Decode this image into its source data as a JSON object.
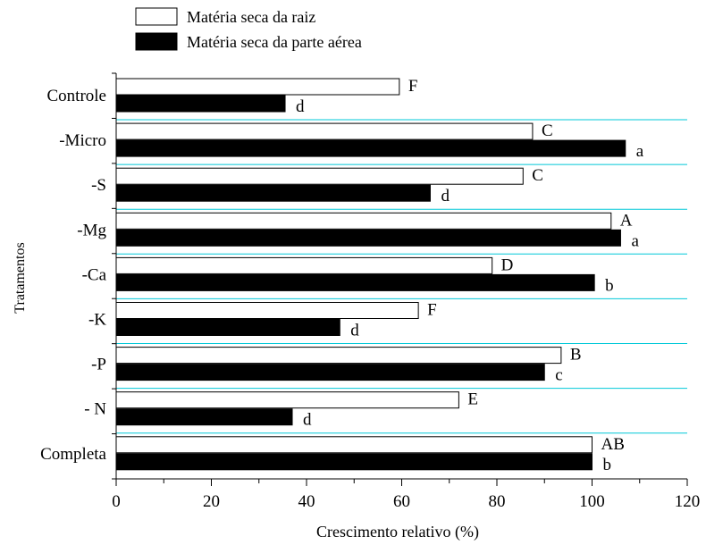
{
  "chart_data": {
    "type": "bar",
    "orientation": "horizontal",
    "title": "",
    "xlabel": "Crescimento relativo (%)",
    "ylabel": "Tratamentos",
    "xlim": [
      0,
      120
    ],
    "x_ticks": [
      0,
      20,
      40,
      60,
      80,
      100,
      120
    ],
    "grid": "horizontal separators between categories (cyan)",
    "legend_position": "top-left",
    "categories": [
      "Controle",
      "-Micro",
      "-S",
      "-Mg",
      "-Ca",
      "-K",
      "-P",
      "- N",
      "Completa"
    ],
    "series": [
      {
        "name": "Matéria seca da raiz",
        "color": "#ffffff",
        "values": [
          59.5,
          87.5,
          85.5,
          104,
          79,
          63.5,
          93.5,
          72,
          100
        ],
        "labels": [
          "F",
          "C",
          "C",
          "A",
          "D",
          "F",
          "B",
          "E",
          "AB"
        ]
      },
      {
        "name": "Matéria seca da parte aérea",
        "color": "#000000",
        "values": [
          35.5,
          107,
          66,
          106,
          100.5,
          47,
          90,
          37,
          100
        ],
        "labels": [
          "d",
          "a",
          "d",
          "a",
          "b",
          "d",
          "c",
          "d",
          "b"
        ]
      }
    ],
    "gridline_color": "#00c8d8"
  }
}
